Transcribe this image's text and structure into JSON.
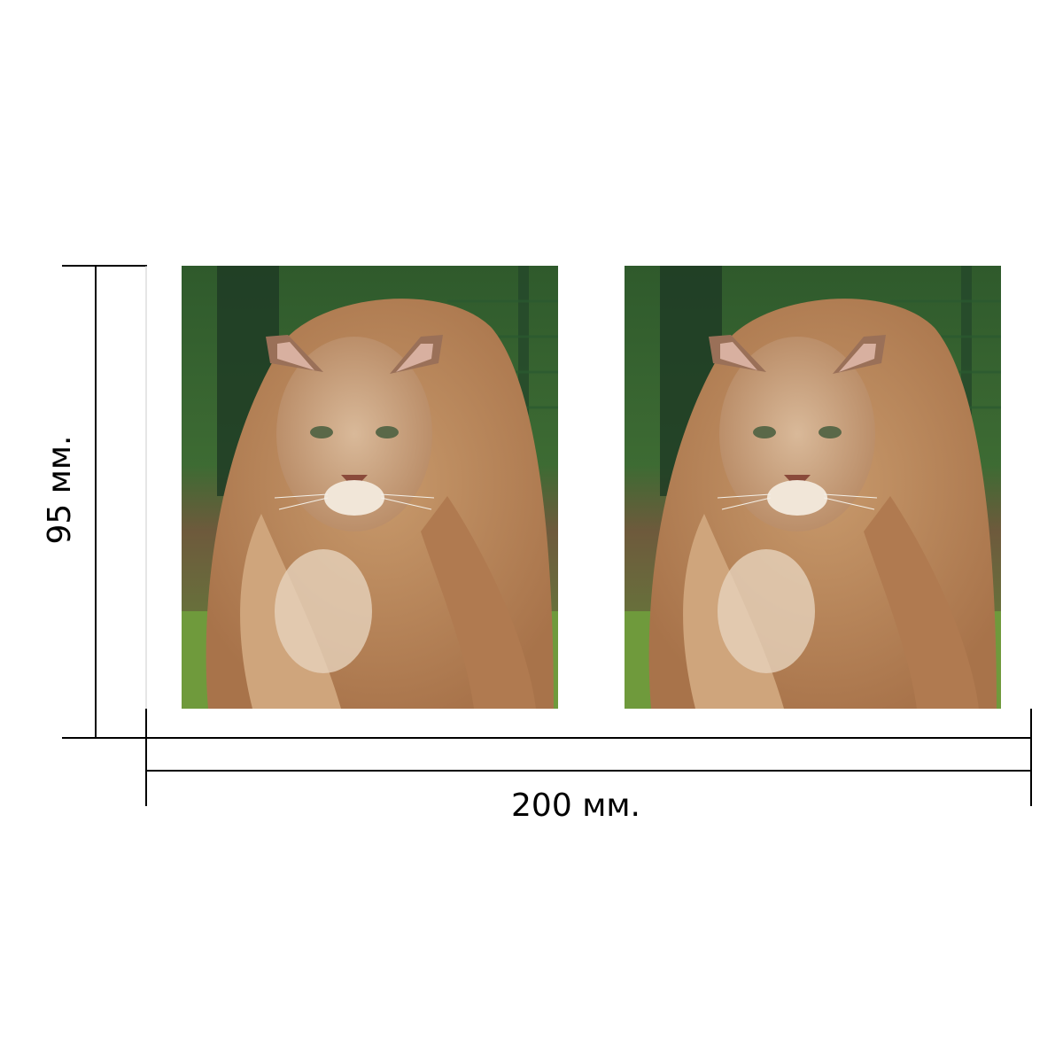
{
  "dimensions": {
    "height_label": "95 мм.",
    "width_label": "200 мм."
  },
  "photos": {
    "count": 2,
    "subject": "cougar-photo"
  },
  "colors": {
    "line": "#000000",
    "background": "#ffffff"
  }
}
